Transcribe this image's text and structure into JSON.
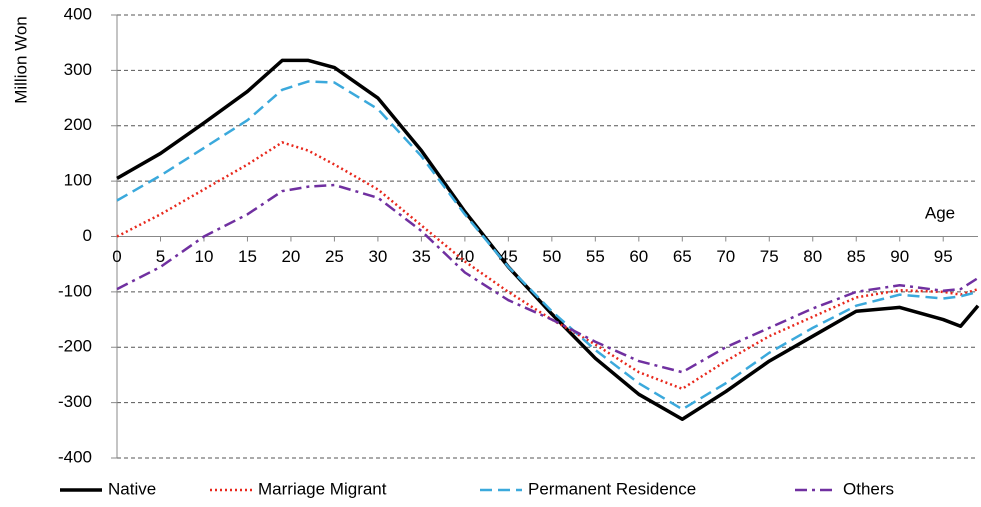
{
  "chart_data": {
    "type": "line",
    "y_label": "Million Won",
    "x_label": "Age",
    "x": [
      0,
      5,
      10,
      15,
      19,
      22,
      25,
      30,
      35,
      40,
      45,
      50,
      55,
      60,
      65,
      70,
      75,
      80,
      85,
      90,
      95,
      97,
      99
    ],
    "series": [
      {
        "name": "Native",
        "color": "#000000",
        "line_style": "solid",
        "values": [
          105,
          150,
          205,
          262,
          318,
          318,
          305,
          250,
          155,
          45,
          -55,
          -140,
          -220,
          -285,
          -330,
          -280,
          -225,
          -180,
          -135,
          -128,
          -150,
          -162,
          -125
        ]
      },
      {
        "name": "Marriage Migrant",
        "color": "#e8281c",
        "line_style": "dotted",
        "values": [
          0,
          40,
          85,
          130,
          170,
          155,
          130,
          85,
          20,
          -45,
          -100,
          -150,
          -195,
          -245,
          -275,
          -225,
          -180,
          -145,
          -110,
          -97,
          -100,
          -105,
          -95
        ]
      },
      {
        "name": "Permanent Residence",
        "color": "#3ba9dc",
        "line_style": "dashed",
        "values": [
          65,
          110,
          160,
          210,
          265,
          280,
          278,
          230,
          145,
          40,
          -55,
          -135,
          -205,
          -265,
          -312,
          -265,
          -210,
          -165,
          -125,
          -105,
          -112,
          -108,
          -100
        ]
      },
      {
        "name": "Others",
        "color": "#7030a0",
        "line_style": "dashdot",
        "values": [
          -95,
          -55,
          0,
          40,
          82,
          90,
          93,
          70,
          10,
          -65,
          -115,
          -150,
          -190,
          -225,
          -245,
          -200,
          -165,
          -130,
          -100,
          -88,
          -98,
          -95,
          -75
        ]
      }
    ],
    "xlim": [
      0,
      99
    ],
    "ylim": [
      -400,
      400
    ],
    "xticks": [
      0,
      5,
      10,
      15,
      20,
      25,
      30,
      35,
      40,
      45,
      50,
      55,
      60,
      65,
      70,
      75,
      80,
      85,
      90,
      95
    ],
    "yticks": [
      -400,
      -300,
      -200,
      -100,
      0,
      100,
      200,
      300,
      400
    ],
    "grid": true,
    "legend": "bottom"
  }
}
